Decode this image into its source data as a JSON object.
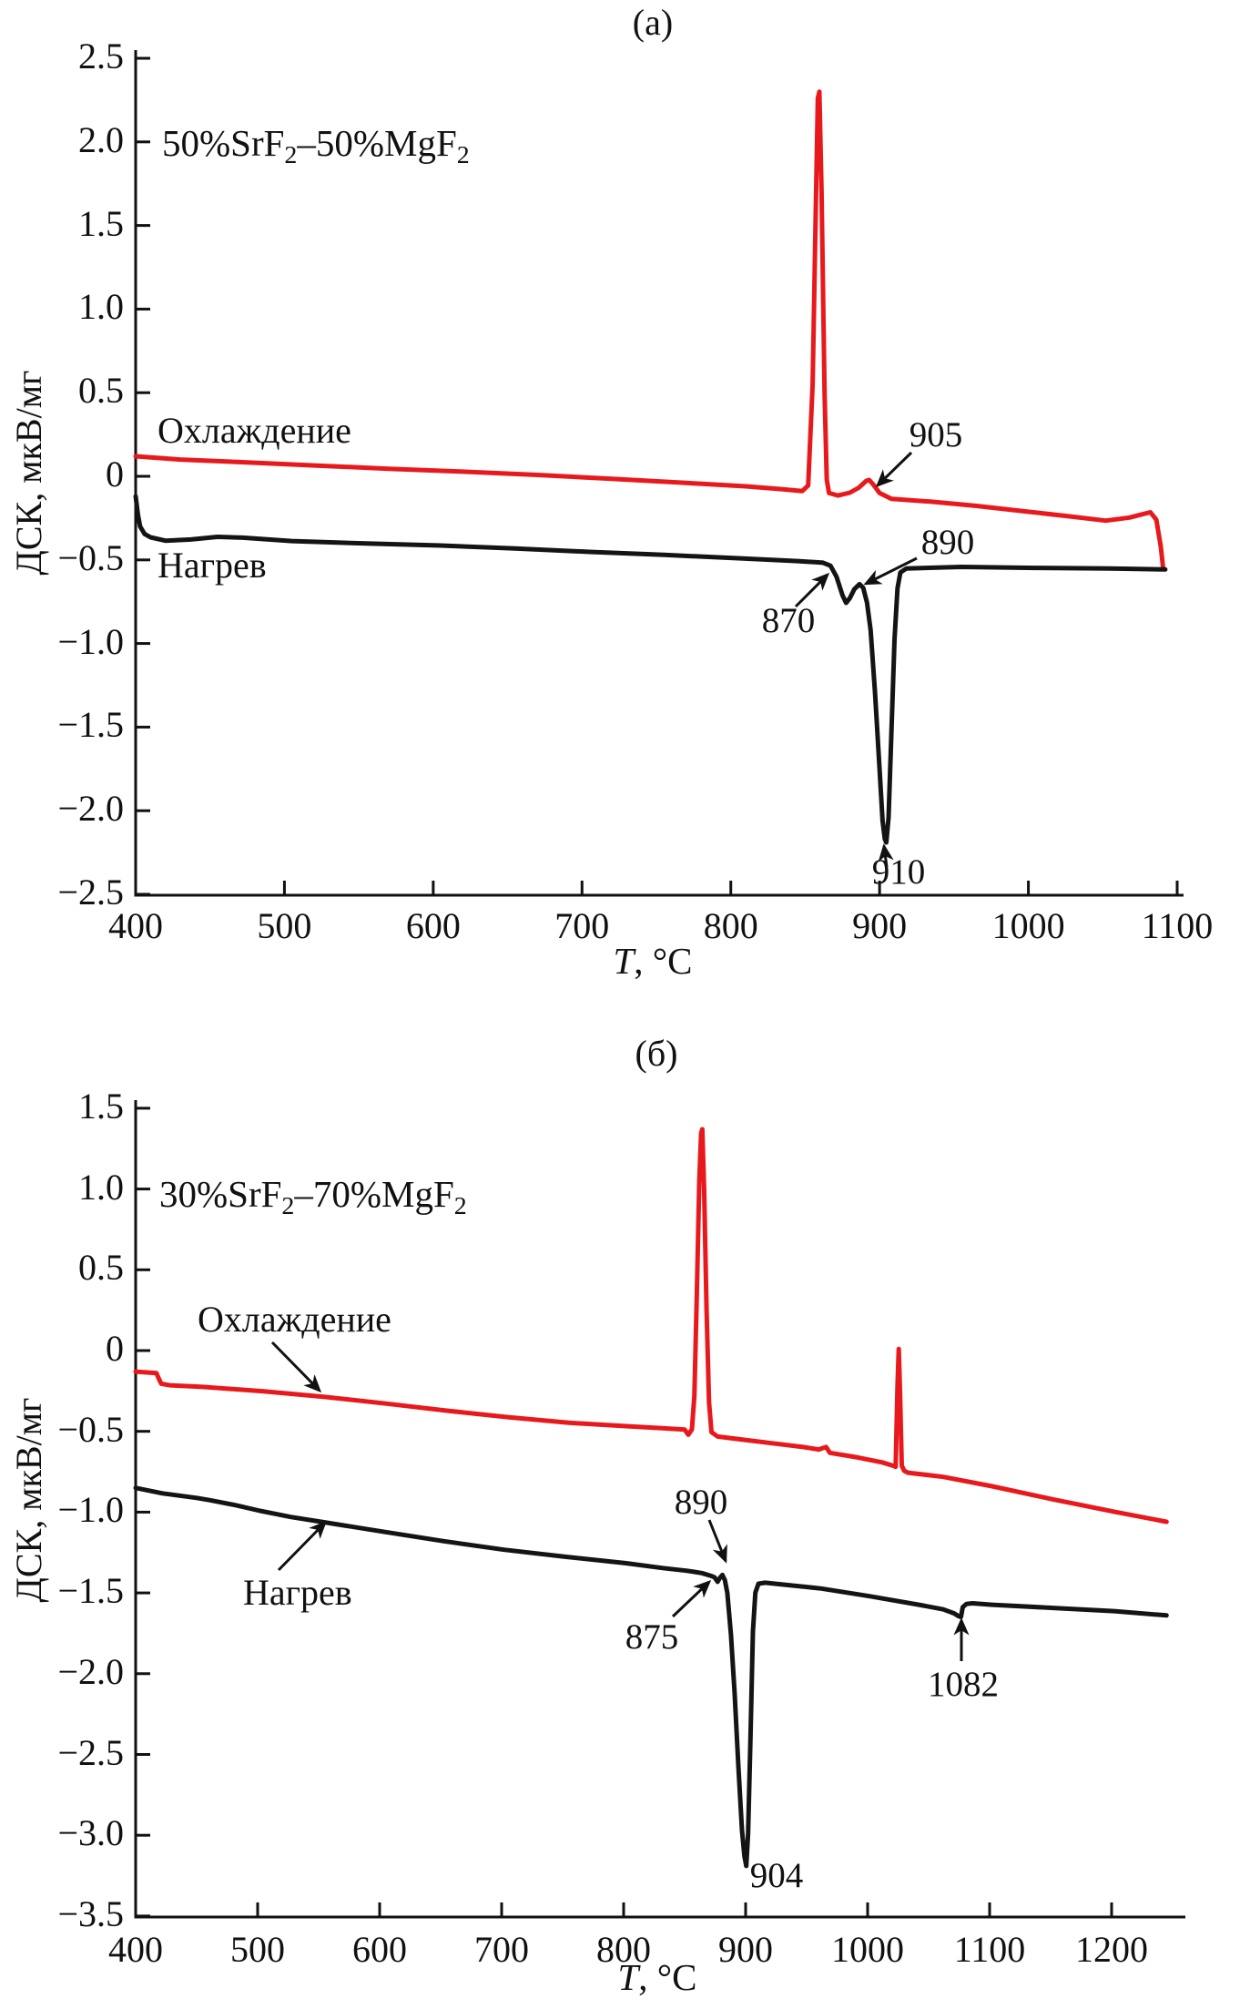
{
  "chart_data": [
    {
      "type": "line",
      "panel_label": "(а)",
      "sample": {
        "p1": "50%SrF",
        "s1": "2",
        "p2": "–50%MgF",
        "s2": "2"
      },
      "xlabel": {
        "symbol": "T",
        "units": ", °C"
      },
      "ylabel": "ДСК, мкВ/мг",
      "xlim": [
        400,
        1104
      ],
      "ylim": [
        -2.5,
        2.5
      ],
      "grid": false,
      "x_ticks": [
        {
          "v": 400,
          "label": "400"
        },
        {
          "v": 500,
          "label": "500"
        },
        {
          "v": 600,
          "label": "600"
        },
        {
          "v": 700,
          "label": "700"
        },
        {
          "v": 800,
          "label": "800"
        },
        {
          "v": 900,
          "label": "900"
        },
        {
          "v": 1000,
          "label": "1000"
        },
        {
          "v": 1100,
          "label": "1100"
        }
      ],
      "y_ticks": [
        {
          "v": 2.5,
          "label": "2.5"
        },
        {
          "v": 2.0,
          "label": "2.0"
        },
        {
          "v": 1.5,
          "label": "1.5"
        },
        {
          "v": 1.0,
          "label": "1.0"
        },
        {
          "v": 0.5,
          "label": "0.5"
        },
        {
          "v": 0,
          "label": "0"
        },
        {
          "v": -0.5,
          "label": "−0.5"
        },
        {
          "v": -1.0,
          "label": "−1.0"
        },
        {
          "v": -1.5,
          "label": "−1.5"
        },
        {
          "v": -2.0,
          "label": "−2.0"
        },
        {
          "v": -2.5,
          "label": "−2.5"
        }
      ],
      "series": [
        {
          "name": "Охлаждение",
          "color": "#e8191c",
          "points": [
            [
              400,
              0.12
            ],
            [
              430,
              0.1
            ],
            [
              470,
              0.085
            ],
            [
              520,
              0.065
            ],
            [
              570,
              0.045
            ],
            [
              620,
              0.028
            ],
            [
              670,
              0.008
            ],
            [
              720,
              -0.015
            ],
            [
              770,
              -0.04
            ],
            [
              810,
              -0.06
            ],
            [
              835,
              -0.078
            ],
            [
              848,
              -0.088
            ],
            [
              852,
              -0.055
            ],
            [
              855,
              0.55
            ],
            [
              857,
              1.55
            ],
            [
              858.5,
              2.26
            ],
            [
              859.5,
              2.3
            ],
            [
              861,
              1.7
            ],
            [
              863,
              0.5
            ],
            [
              864.5,
              -0.02
            ],
            [
              866,
              -0.1
            ],
            [
              872,
              -0.115
            ],
            [
              880,
              -0.098
            ],
            [
              886,
              -0.068
            ],
            [
              891,
              -0.028
            ],
            [
              893,
              -0.022
            ],
            [
              896,
              -0.052
            ],
            [
              900,
              -0.1
            ],
            [
              908,
              -0.135
            ],
            [
              935,
              -0.152
            ],
            [
              965,
              -0.177
            ],
            [
              995,
              -0.207
            ],
            [
              1025,
              -0.237
            ],
            [
              1052,
              -0.265
            ],
            [
              1068,
              -0.247
            ],
            [
              1076,
              -0.228
            ],
            [
              1082,
              -0.215
            ],
            [
              1086,
              -0.26
            ],
            [
              1089,
              -0.42
            ],
            [
              1090.5,
              -0.545
            ]
          ]
        },
        {
          "name": "Нагрев",
          "color": "#141414",
          "points": [
            [
              400,
              -0.12
            ],
            [
              401.5,
              -0.23
            ],
            [
              403,
              -0.3
            ],
            [
              406,
              -0.345
            ],
            [
              410,
              -0.365
            ],
            [
              420,
              -0.385
            ],
            [
              437,
              -0.378
            ],
            [
              455,
              -0.362
            ],
            [
              472,
              -0.367
            ],
            [
              505,
              -0.387
            ],
            [
              555,
              -0.402
            ],
            [
              605,
              -0.414
            ],
            [
              655,
              -0.432
            ],
            [
              705,
              -0.452
            ],
            [
              755,
              -0.47
            ],
            [
              805,
              -0.49
            ],
            [
              845,
              -0.507
            ],
            [
              862,
              -0.517
            ],
            [
              867,
              -0.535
            ],
            [
              871,
              -0.6
            ],
            [
              875,
              -0.71
            ],
            [
              877.5,
              -0.757
            ],
            [
              880,
              -0.728
            ],
            [
              883,
              -0.675
            ],
            [
              886.5,
              -0.645
            ],
            [
              889,
              -0.668
            ],
            [
              891.5,
              -0.755
            ],
            [
              894,
              -0.92
            ],
            [
              897,
              -1.3
            ],
            [
              900,
              -1.75
            ],
            [
              902,
              -2.06
            ],
            [
              903.5,
              -2.17
            ],
            [
              904.5,
              -2.19
            ],
            [
              906,
              -2.04
            ],
            [
              908,
              -1.52
            ],
            [
              910,
              -0.98
            ],
            [
              912,
              -0.67
            ],
            [
              914,
              -0.575
            ],
            [
              918,
              -0.551
            ],
            [
              955,
              -0.542
            ],
            [
              1005,
              -0.548
            ],
            [
              1055,
              -0.552
            ],
            [
              1092,
              -0.557
            ]
          ]
        }
      ],
      "curve_labels": [
        {
          "text": "Охлаждение",
          "x": 173,
          "top": 450,
          "arrow": null
        },
        {
          "text": "Нагрев",
          "x": 173,
          "top": 598,
          "arrow": null
        }
      ],
      "annotations": [
        {
          "text": "905",
          "cx": 1028,
          "top": 456,
          "arrow": [
            1001,
            497,
            964,
            533
          ]
        },
        {
          "text": "890",
          "cx": 1041,
          "top": 574,
          "arrow": [
            1007,
            613,
            951,
            641
          ]
        },
        {
          "text": "870",
          "cx": 866,
          "top": 660,
          "arrow": [
            874,
            666,
            909,
            631
          ]
        },
        {
          "text": "910",
          "cx": 987,
          "top": 936,
          "arrow": [
            974,
            952,
            971,
            929
          ]
        }
      ]
    },
    {
      "type": "line",
      "panel_label": "(б)",
      "sample": {
        "p1": "30%SrF",
        "s1": "2",
        "p2": "–70%MgF",
        "s2": "2"
      },
      "xlabel": {
        "symbol": "T",
        "units": ", °C"
      },
      "ylabel": "ДСК, мкВ/мг",
      "xlim": [
        400,
        1260
      ],
      "ylim": [
        -3.5,
        1.5
      ],
      "grid": false,
      "x_ticks": [
        {
          "v": 400,
          "label": "400"
        },
        {
          "v": 500,
          "label": "500"
        },
        {
          "v": 600,
          "label": "600"
        },
        {
          "v": 700,
          "label": "700"
        },
        {
          "v": 800,
          "label": "800"
        },
        {
          "v": 900,
          "label": "900"
        },
        {
          "v": 1000,
          "label": "1000"
        },
        {
          "v": 1100,
          "label": "1100"
        },
        {
          "v": 1200,
          "label": "1200"
        }
      ],
      "y_ticks": [
        {
          "v": 1.5,
          "label": "1.5"
        },
        {
          "v": 1.0,
          "label": "1.0"
        },
        {
          "v": 0.5,
          "label": "0.5"
        },
        {
          "v": 0,
          "label": "0"
        },
        {
          "v": -0.5,
          "label": "−0.5"
        },
        {
          "v": -1.0,
          "label": "−1.0"
        },
        {
          "v": -1.5,
          "label": "−1.5"
        },
        {
          "v": -2.0,
          "label": "−2.0"
        },
        {
          "v": -2.5,
          "label": "−2.5"
        },
        {
          "v": -3.0,
          "label": "−3.0"
        },
        {
          "v": -3.5,
          "label": "−3.5"
        }
      ],
      "series": [
        {
          "name": "Охлаждение",
          "color": "#e8191c",
          "points": [
            [
              400,
              -0.13
            ],
            [
              417,
              -0.14
            ],
            [
              419,
              -0.175
            ],
            [
              421,
              -0.205
            ],
            [
              428,
              -0.215
            ],
            [
              455,
              -0.225
            ],
            [
              505,
              -0.252
            ],
            [
              555,
              -0.287
            ],
            [
              605,
              -0.328
            ],
            [
              655,
              -0.372
            ],
            [
              705,
              -0.412
            ],
            [
              755,
              -0.447
            ],
            [
              805,
              -0.469
            ],
            [
              832,
              -0.481
            ],
            [
              850,
              -0.489
            ],
            [
              853,
              -0.521
            ],
            [
              856,
              -0.488
            ],
            [
              858,
              -0.28
            ],
            [
              860,
              0.35
            ],
            [
              862,
              1.05
            ],
            [
              863.5,
              1.345
            ],
            [
              864.5,
              1.37
            ],
            [
              866,
              1.0
            ],
            [
              868,
              0.25
            ],
            [
              870,
              -0.32
            ],
            [
              872,
              -0.505
            ],
            [
              877,
              -0.532
            ],
            [
              895,
              -0.549
            ],
            [
              922,
              -0.574
            ],
            [
              947,
              -0.597
            ],
            [
              960,
              -0.612
            ],
            [
              963,
              -0.604
            ],
            [
              966,
              -0.597
            ],
            [
              969,
              -0.633
            ],
            [
              992,
              -0.662
            ],
            [
              1012,
              -0.692
            ],
            [
              1021,
              -0.713
            ],
            [
              1023,
              -0.72
            ],
            [
              1024.5,
              -0.22
            ],
            [
              1025.5,
              0.01
            ],
            [
              1026.5,
              -0.24
            ],
            [
              1028,
              -0.713
            ],
            [
              1030,
              -0.744
            ],
            [
              1033,
              -0.756
            ],
            [
              1062,
              -0.782
            ],
            [
              1102,
              -0.84
            ],
            [
              1152,
              -0.921
            ],
            [
              1202,
              -0.997
            ],
            [
              1245,
              -1.06
            ]
          ]
        },
        {
          "name": "Нагрев",
          "color": "#141414",
          "points": [
            [
              400,
              -0.85
            ],
            [
              422,
              -0.884
            ],
            [
              450,
              -0.912
            ],
            [
              461,
              -0.926
            ],
            [
              482,
              -0.957
            ],
            [
              502,
              -0.992
            ],
            [
              516,
              -1.013
            ],
            [
              521,
              -1.021
            ],
            [
              527,
              -1.03
            ],
            [
              552,
              -1.06
            ],
            [
              602,
              -1.12
            ],
            [
              652,
              -1.179
            ],
            [
              702,
              -1.233
            ],
            [
              752,
              -1.276
            ],
            [
              802,
              -1.316
            ],
            [
              832,
              -1.346
            ],
            [
              852,
              -1.363
            ],
            [
              864,
              -1.377
            ],
            [
              871,
              -1.393
            ],
            [
              874.5,
              -1.403
            ],
            [
              877,
              -1.431
            ],
            [
              879,
              -1.406
            ],
            [
              881,
              -1.389
            ],
            [
              883,
              -1.421
            ],
            [
              885,
              -1.5
            ],
            [
              888,
              -1.76
            ],
            [
              891,
              -2.12
            ],
            [
              894,
              -2.57
            ],
            [
              897,
              -2.97
            ],
            [
              899,
              -3.13
            ],
            [
              900.5,
              -3.19
            ],
            [
              902,
              -2.99
            ],
            [
              904,
              -2.38
            ],
            [
              906,
              -1.74
            ],
            [
              908,
              -1.498
            ],
            [
              910.5,
              -1.443
            ],
            [
              916,
              -1.437
            ],
            [
              932,
              -1.449
            ],
            [
              962,
              -1.473
            ],
            [
              1002,
              -1.521
            ],
            [
              1042,
              -1.573
            ],
            [
              1062,
              -1.602
            ],
            [
              1071,
              -1.627
            ],
            [
              1074.5,
              -1.644
            ],
            [
              1076.5,
              -1.649
            ],
            [
              1078,
              -1.588
            ],
            [
              1081,
              -1.568
            ],
            [
              1086,
              -1.564
            ],
            [
              1102,
              -1.573
            ],
            [
              1152,
              -1.593
            ],
            [
              1202,
              -1.613
            ],
            [
              1245,
              -1.639
            ]
          ]
        }
      ],
      "curve_labels": [
        {
          "text": "Охлаждение",
          "x": 217,
          "top": 1426,
          "arrow": [
            299,
            1474,
            351,
            1527
          ]
        },
        {
          "text": "Нагрев",
          "x": 267,
          "top": 1726,
          "arrow": [
            306,
            1724,
            357,
            1672
          ]
        }
      ],
      "annotations": [
        {
          "text": "890",
          "cx": 770,
          "top": 1628,
          "arrow": [
            779,
            1669,
            797,
            1714
          ]
        },
        {
          "text": "875",
          "cx": 716,
          "top": 1776,
          "arrow": [
            739,
            1775,
            779,
            1737
          ]
        },
        {
          "text": "904",
          "cx": 853,
          "top": 2038,
          "arrow": null
        },
        {
          "text": "1082",
          "cx": 1058,
          "top": 1828,
          "arrow": [
            1056,
            1824,
            1056,
            1779
          ]
        }
      ]
    }
  ]
}
